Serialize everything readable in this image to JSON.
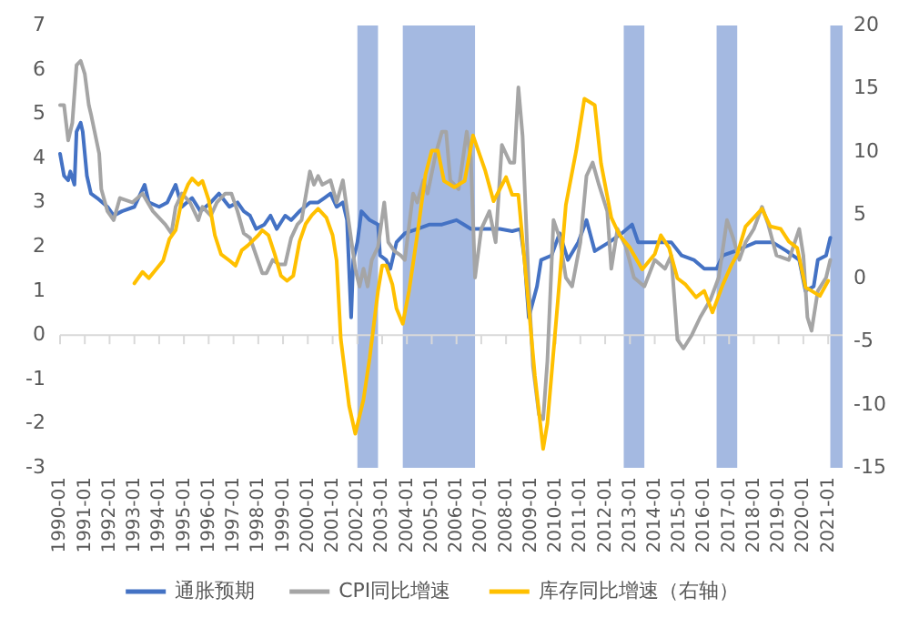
{
  "chart_data": {
    "type": "line",
    "xlim": [
      "1990-01",
      "2021-08"
    ],
    "xticks": [
      "1990-01",
      "1991-01",
      "1992-01",
      "1993-01",
      "1994-01",
      "1995-01",
      "1996-01",
      "1997-01",
      "1998-01",
      "1999-01",
      "2000-01",
      "2001-01",
      "2002-01",
      "2003-01",
      "2004-01",
      "2005-01",
      "2006-01",
      "2007-01",
      "2008-01",
      "2009-01",
      "2010-01",
      "2011-01",
      "2012-01",
      "2013-01",
      "2014-01",
      "2015-01",
      "2016-01",
      "2017-01",
      "2018-01",
      "2019-01",
      "2020-01",
      "2021-01"
    ],
    "ylim": [
      -3,
      7
    ],
    "yticks": [
      -3,
      -2,
      -1,
      0,
      1,
      2,
      3,
      4,
      5,
      6,
      7
    ],
    "y2lim": [
      -15,
      20
    ],
    "y2ticks": [
      -15,
      -10,
      -5,
      0,
      5,
      10,
      15,
      20
    ],
    "legend": "bottom",
    "bands": [
      {
        "axis": "x",
        "from": "2002-01",
        "to": "2002-11",
        "color": "#a4b9e1"
      },
      {
        "axis": "x",
        "from": "2003-11",
        "to": "2006-10",
        "color": "#a4b9e1"
      },
      {
        "axis": "x",
        "from": "2012-10",
        "to": "2013-08",
        "color": "#a4b9e1"
      },
      {
        "axis": "x",
        "from": "2016-07",
        "to": "2017-05",
        "color": "#a4b9e1"
      },
      {
        "axis": "x",
        "from": "2021-02",
        "to": "2021-08",
        "color": "#a4b9e1"
      }
    ],
    "series": [
      {
        "name": "通胀预期",
        "color": "#4472c4",
        "x": [
          "1990-01",
          "1990-03",
          "1990-05",
          "1990-06",
          "1990-08",
          "1990-09",
          "1990-11",
          "1990-12",
          "1991-02",
          "1991-04",
          "1991-07",
          "1991-12",
          "1992-03",
          "1992-07",
          "1993-01",
          "1993-06",
          "1993-08",
          "1994-01",
          "1994-05",
          "1994-09",
          "1994-12",
          "1995-05",
          "1995-09",
          "1996-02",
          "1996-06",
          "1996-11",
          "1997-03",
          "1997-06",
          "1997-09",
          "1997-12",
          "1998-04",
          "1998-07",
          "1998-10",
          "1999-02",
          "1999-05",
          "1999-09",
          "2000-02",
          "2000-06",
          "2000-09",
          "2000-12",
          "2001-03",
          "2001-06",
          "2001-08",
          "2001-10",
          "2001-11",
          "2002-01",
          "2002-03",
          "2002-07",
          "2002-11",
          "2002-12",
          "2003-03",
          "2003-05",
          "2003-08",
          "2003-12",
          "2004-06",
          "2004-12",
          "2005-06",
          "2006-01",
          "2006-08",
          "2007-03",
          "2007-10",
          "2008-04",
          "2008-08",
          "2008-10",
          "2008-12",
          "2009-04",
          "2009-06",
          "2009-11",
          "2010-03",
          "2010-07",
          "2010-12",
          "2011-04",
          "2011-08",
          "2012-03",
          "2012-09",
          "2013-02",
          "2013-05",
          "2014-02",
          "2014-09",
          "2015-02",
          "2015-08",
          "2016-01",
          "2016-07",
          "2016-10",
          "2017-04",
          "2017-09",
          "2018-02",
          "2018-10",
          "2019-05",
          "2019-11",
          "2020-02",
          "2020-06",
          "2020-08",
          "2020-12",
          "2021-02"
        ],
        "values": [
          4.1,
          3.6,
          3.5,
          3.7,
          3.4,
          4.6,
          4.8,
          4.6,
          3.6,
          3.2,
          3.1,
          2.9,
          2.7,
          2.8,
          2.9,
          3.4,
          3.0,
          2.9,
          3.0,
          3.4,
          2.9,
          3.1,
          2.8,
          3.0,
          3.2,
          2.9,
          3.0,
          2.8,
          2.7,
          2.4,
          2.5,
          2.7,
          2.4,
          2.7,
          2.6,
          2.8,
          3.0,
          3.0,
          3.1,
          3.2,
          2.9,
          3.0,
          2.6,
          0.4,
          1.7,
          2.1,
          2.8,
          2.6,
          2.5,
          1.8,
          1.7,
          1.5,
          2.1,
          2.3,
          2.4,
          2.5,
          2.5,
          2.6,
          2.4,
          2.4,
          2.4,
          2.35,
          2.4,
          1.7,
          0.4,
          1.1,
          1.7,
          1.8,
          2.3,
          1.7,
          2.1,
          2.6,
          1.9,
          2.1,
          2.3,
          2.5,
          2.1,
          2.1,
          2.1,
          1.8,
          1.7,
          1.5,
          1.5,
          1.8,
          1.9,
          2.0,
          2.1,
          2.1,
          1.9,
          1.7,
          1.0,
          1.1,
          1.7,
          1.8,
          2.2
        ]
      },
      {
        "name": "CPI同比增速",
        "color": "#a5a5a5",
        "x": [
          "1990-01",
          "1990-03",
          "1990-05",
          "1990-07",
          "1990-09",
          "1990-11",
          "1991-01",
          "1991-03",
          "1991-04",
          "1991-08",
          "1991-09",
          "1991-12",
          "1992-03",
          "1992-06",
          "1992-12",
          "1993-05",
          "1993-10",
          "1994-04",
          "1994-07",
          "1994-09",
          "1994-12",
          "1995-04",
          "1995-08",
          "1995-10",
          "1996-02",
          "1996-05",
          "1996-09",
          "1996-12",
          "1997-03",
          "1997-06",
          "1997-09",
          "1997-12",
          "1998-03",
          "1998-05",
          "1998-08",
          "1998-11",
          "1999-02",
          "1999-05",
          "1999-08",
          "1999-10",
          "2000-02",
          "2000-04",
          "2000-06",
          "2000-08",
          "2000-12",
          "2001-03",
          "2001-06",
          "2001-09",
          "2001-12",
          "2002-02",
          "2002-04",
          "2002-06",
          "2002-08",
          "2002-11",
          "2003-02",
          "2003-04",
          "2003-07",
          "2003-10",
          "2003-12",
          "2004-04",
          "2004-06",
          "2004-09",
          "2004-11",
          "2005-03",
          "2005-06",
          "2005-08",
          "2005-10",
          "2006-02",
          "2006-06",
          "2006-08",
          "2006-10",
          "2007-01",
          "2007-05",
          "2007-08",
          "2007-11",
          "2008-03",
          "2008-05",
          "2008-07",
          "2008-09",
          "2008-12",
          "2009-02",
          "2009-05",
          "2009-07",
          "2009-09",
          "2009-12",
          "2010-03",
          "2010-06",
          "2010-09",
          "2011-01",
          "2011-04",
          "2011-07",
          "2011-10",
          "2012-02",
          "2012-04",
          "2012-07",
          "2012-11",
          "2013-03",
          "2013-08",
          "2014-01",
          "2014-06",
          "2014-09",
          "2014-12",
          "2015-03",
          "2015-07",
          "2015-11",
          "2016-04",
          "2016-08",
          "2016-12",
          "2017-03",
          "2017-06",
          "2017-09",
          "2018-01",
          "2018-05",
          "2018-08",
          "2018-12",
          "2019-06",
          "2019-11",
          "2020-01",
          "2020-03",
          "2020-05",
          "2020-08",
          "2020-12",
          "2021-02"
        ],
        "values": [
          5.2,
          5.2,
          4.4,
          4.8,
          6.1,
          6.2,
          5.9,
          5.2,
          5.0,
          4.1,
          3.3,
          2.8,
          2.6,
          3.1,
          3.0,
          3.2,
          2.8,
          2.5,
          2.3,
          2.9,
          3.2,
          3.0,
          2.6,
          2.9,
          2.7,
          3.0,
          3.2,
          3.2,
          2.8,
          2.3,
          2.2,
          1.8,
          1.4,
          1.4,
          1.7,
          1.6,
          1.6,
          2.2,
          2.5,
          2.6,
          3.7,
          3.4,
          3.6,
          3.4,
          3.5,
          3.0,
          3.5,
          2.5,
          1.5,
          1.1,
          1.5,
          1.1,
          1.7,
          2.0,
          3.0,
          2.1,
          1.9,
          1.8,
          1.7,
          3.2,
          3.0,
          3.5,
          3.2,
          4.1,
          4.6,
          4.6,
          3.5,
          3.3,
          4.6,
          4.0,
          1.3,
          2.4,
          2.8,
          2.1,
          4.3,
          3.9,
          3.9,
          5.6,
          4.5,
          1.1,
          -0.7,
          -1.8,
          -1.9,
          -0.6,
          2.6,
          2.2,
          1.3,
          1.1,
          2.1,
          3.6,
          3.9,
          3.4,
          2.8,
          1.5,
          2.4,
          2.0,
          1.3,
          1.1,
          1.7,
          1.5,
          1.8,
          -0.1,
          -0.3,
          0.0,
          0.4,
          0.8,
          1.3,
          2.6,
          2.2,
          1.7,
          2.1,
          2.4,
          2.9,
          2.5,
          1.8,
          1.7,
          2.4,
          1.8,
          0.4,
          0.1,
          1.0,
          1.3,
          1.7
        ]
      },
      {
        "name": "库存同比增速（右轴）",
        "color": "#ffc000",
        "axis": "y2",
        "x": [
          "1993-01",
          "1993-05",
          "1993-08",
          "1994-01",
          "1994-03",
          "1994-06",
          "1994-09",
          "1994-12",
          "1995-03",
          "1995-05",
          "1995-08",
          "1995-10",
          "1996-01",
          "1996-04",
          "1996-07",
          "1996-11",
          "1997-02",
          "1997-05",
          "1997-08",
          "1998-01",
          "1998-03",
          "1998-06",
          "1998-09",
          "1998-12",
          "1999-03",
          "1999-06",
          "1999-09",
          "1999-12",
          "2000-03",
          "2000-06",
          "2000-10",
          "2001-01",
          "2001-03",
          "2001-05",
          "2001-09",
          "2001-12",
          "2002-04",
          "2002-07",
          "2002-11",
          "2003-01",
          "2003-03",
          "2003-06",
          "2003-08",
          "2003-11",
          "2004-02",
          "2004-06",
          "2004-10",
          "2005-01",
          "2005-04",
          "2005-07",
          "2005-12",
          "2006-05",
          "2006-09",
          "2007-03",
          "2007-07",
          "2008-01",
          "2008-04",
          "2008-07",
          "2008-11",
          "2009-03",
          "2009-07",
          "2009-09",
          "2010-02",
          "2010-06",
          "2010-11",
          "2011-03",
          "2011-08",
          "2011-11",
          "2012-04",
          "2012-08",
          "2013-01",
          "2013-07",
          "2014-01",
          "2014-04",
          "2014-08",
          "2014-12",
          "2015-04",
          "2015-09",
          "2016-01",
          "2016-05",
          "2016-10",
          "2017-02",
          "2017-05",
          "2017-09",
          "2018-01",
          "2018-05",
          "2018-09",
          "2019-02",
          "2019-06",
          "2019-10",
          "2020-02",
          "2020-05",
          "2020-09",
          "2021-01"
        ],
        "values": [
          -0.4,
          0.5,
          0.0,
          1.0,
          1.4,
          3.1,
          3.8,
          6.2,
          7.4,
          7.9,
          7.4,
          7.7,
          6.2,
          3.4,
          1.9,
          1.4,
          1.0,
          2.2,
          2.6,
          3.4,
          3.8,
          3.4,
          1.9,
          0.2,
          -0.2,
          0.2,
          2.9,
          4.3,
          5.0,
          5.5,
          4.8,
          3.4,
          1.4,
          -4.8,
          -10.1,
          -12.3,
          -9.6,
          -6.3,
          -1.0,
          1.0,
          1.0,
          -0.5,
          -2.4,
          -3.6,
          -1.0,
          3.4,
          8.2,
          10.1,
          10.1,
          7.7,
          7.2,
          7.7,
          11.3,
          8.5,
          6.1,
          8.0,
          6.6,
          6.6,
          -0.5,
          -7.7,
          -13.5,
          -11.5,
          -1.9,
          5.8,
          10.1,
          14.2,
          13.7,
          9.1,
          4.8,
          3.4,
          2.4,
          0.7,
          1.9,
          3.4,
          2.4,
          0.0,
          -0.5,
          -1.5,
          -1.0,
          -2.7,
          -0.5,
          1.0,
          1.9,
          4.1,
          4.8,
          5.5,
          4.1,
          3.9,
          2.9,
          2.4,
          -0.7,
          -1.0,
          -1.4,
          -0.2
        ]
      }
    ]
  }
}
